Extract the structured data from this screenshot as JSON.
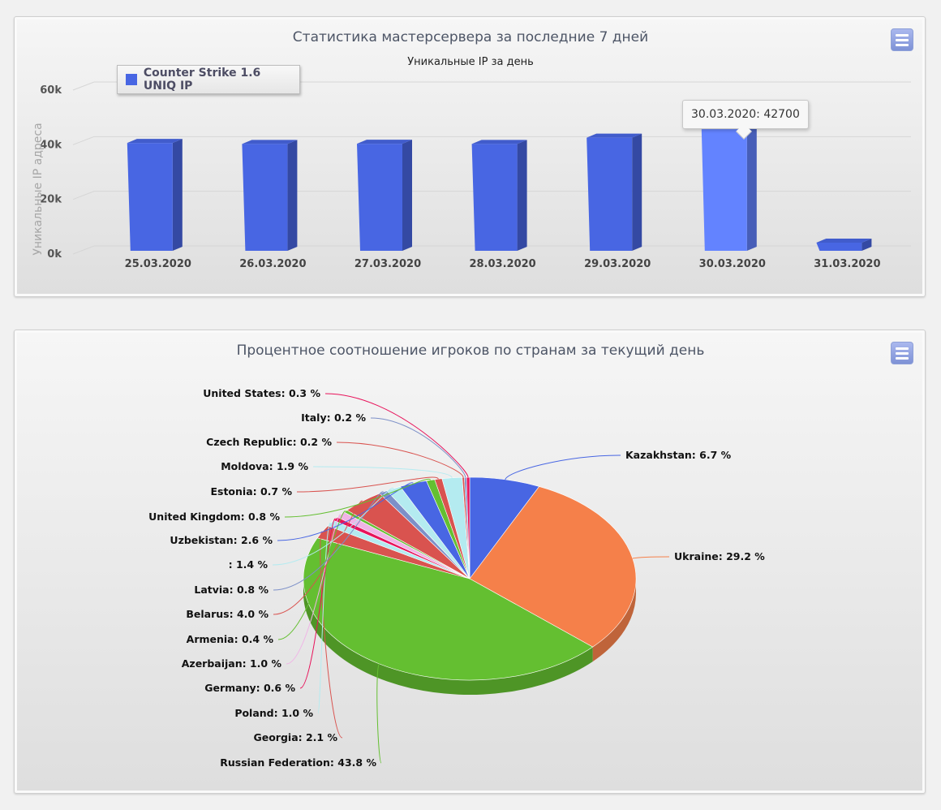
{
  "bar_panel": {
    "title": "Статистика мастерсервера за последние 7 дней",
    "subtitle": "Уникальные IP за день",
    "menu_icon": "hamburger-menu-icon"
  },
  "pie_panel": {
    "title": "Процентное соотношение игроков по странам за текущий день",
    "menu_icon": "hamburger-menu-icon"
  },
  "tooltip": {
    "text": "30.03.2020: 42700"
  },
  "chart_data": [
    {
      "type": "bar",
      "title": "Статистика мастерсервера за последние 7 дней",
      "subtitle": "Уникальные IP за день",
      "xlabel": "",
      "ylabel": "Уникальные IP адреса",
      "ylim": [
        0,
        60000
      ],
      "yticks": [
        "0k",
        "20k",
        "40k",
        "60k"
      ],
      "grid": true,
      "legend_position": "top-left",
      "categories": [
        "25.03.2020",
        "26.03.2020",
        "27.03.2020",
        "28.03.2020",
        "29.03.2020",
        "30.03.2020",
        "31.03.2020"
      ],
      "series": [
        {
          "name": "Counter Strike 1.6 UNIQ IP",
          "color": "#4866e3",
          "values": [
            37700,
            37300,
            37400,
            37300,
            39600,
            42700,
            1200
          ]
        }
      ],
      "highlight_color": "#6383ff"
    },
    {
      "type": "pie",
      "title": "Процентное соотношение игроков по странам за текущий день",
      "slices": [
        {
          "label": "Kazakhstan: 6.7 %",
          "value": 6.7,
          "color": "#4866e3"
        },
        {
          "label": "Ukraine: 29.2 %",
          "value": 29.2,
          "color": "#f5804a"
        },
        {
          "label": "Russian Federation: 43.8 %",
          "value": 43.8,
          "color": "#64bf31"
        },
        {
          "label": "Georgia: 2.1 %",
          "value": 2.1,
          "color": "#d9534f"
        },
        {
          "label": "Poland: 1.0 %",
          "value": 1.0,
          "color": "#b4ebf0"
        },
        {
          "label": "Germany: 0.6 %",
          "value": 0.6,
          "color": "#e8125a"
        },
        {
          "label": "Azerbaijan: 1.0 %",
          "value": 1.0,
          "color": "#f0b4e6"
        },
        {
          "label": "Armenia: 0.4 %",
          "value": 0.4,
          "color": "#64bf31"
        },
        {
          "label": "Belarus: 4.0 %",
          "value": 4.0,
          "color": "#d9534f"
        },
        {
          "label": "Latvia: 0.8 %",
          "value": 0.8,
          "color": "#7d90c8"
        },
        {
          "label": ": 1.4 %",
          "value": 1.4,
          "color": "#b4ebf0"
        },
        {
          "label": "Uzbekistan: 2.6 %",
          "value": 2.6,
          "color": "#4866e3"
        },
        {
          "label": "United Kingdom: 0.8 %",
          "value": 0.8,
          "color": "#64bf31"
        },
        {
          "label": "Estonia: 0.7 %",
          "value": 0.7,
          "color": "#d9534f"
        },
        {
          "label": "Moldova: 1.9 %",
          "value": 1.9,
          "color": "#b4ebf0"
        },
        {
          "label": "Czech Republic: 0.2 %",
          "value": 0.2,
          "color": "#d9534f"
        },
        {
          "label": "Italy: 0.2 %",
          "value": 0.2,
          "color": "#7d90c8"
        },
        {
          "label": "United States: 0.3 %",
          "value": 0.3,
          "color": "#e8125a"
        }
      ]
    }
  ]
}
